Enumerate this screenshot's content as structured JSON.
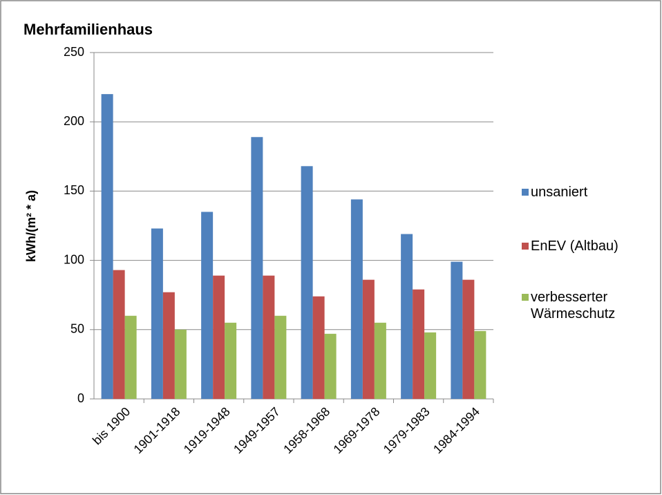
{
  "chart_data": {
    "type": "bar",
    "title": "Mehrfamilienhaus",
    "y_label": "kWh/(m² * a)",
    "categories": [
      "bis 1900",
      "1901-1918",
      "1919-1948",
      "1949-1957",
      "1958-1968",
      "1969-1978",
      "1979-1983",
      "1984-1994"
    ],
    "series": [
      {
        "name": "unsaniert",
        "color": "#4f81bd",
        "values": [
          220,
          123,
          135,
          189,
          168,
          144,
          119,
          99
        ]
      },
      {
        "name": "EnEV (Altbau)",
        "color": "#c0504d",
        "values": [
          93,
          77,
          89,
          89,
          74,
          86,
          79,
          86
        ]
      },
      {
        "name": "verbesserter Wärmeschutz",
        "color": "#9bbb59",
        "values": [
          60,
          50,
          55,
          60,
          47,
          55,
          48,
          49
        ]
      }
    ],
    "ylim": [
      0,
      250
    ],
    "yticks": [
      0,
      50,
      100,
      150,
      200,
      250
    ],
    "grid": true,
    "legend": "right"
  }
}
